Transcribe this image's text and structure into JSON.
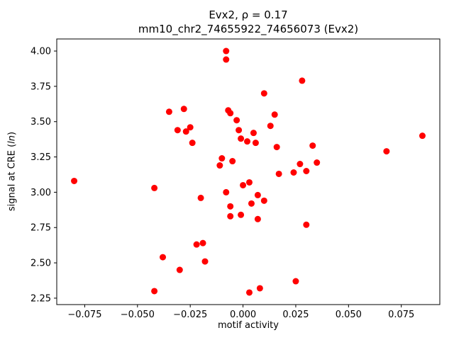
{
  "chart_data": {
    "type": "scatter",
    "title": "Evx2, ρ = 0.17",
    "subtitle": "mm10_chr2_74655922_74656073 (Evx2)",
    "xlabel": "motif activity",
    "ylabel": "signal at CRE (ln)",
    "ylabel_prefix": "signal at CRE (",
    "ylabel_math": "ln",
    "ylabel_suffix": ")",
    "marker_color": "#ff0000",
    "frame_color": "#000000",
    "background": "#ffffff",
    "legend": "none",
    "grid": false,
    "xlim": [
      -0.08825,
      0.09325
    ],
    "ylim": [
      2.2045,
      4.0855
    ],
    "xticks": [
      {
        "value": -0.075,
        "label": "−0.075"
      },
      {
        "value": -0.05,
        "label": "−0.050"
      },
      {
        "value": -0.025,
        "label": "−0.025"
      },
      {
        "value": 0.0,
        "label": "0.000"
      },
      {
        "value": 0.025,
        "label": "0.025"
      },
      {
        "value": 0.05,
        "label": "0.050"
      },
      {
        "value": 0.075,
        "label": "0.075"
      }
    ],
    "yticks": [
      {
        "value": 2.25,
        "label": "2.25"
      },
      {
        "value": 2.5,
        "label": "2.50"
      },
      {
        "value": 2.75,
        "label": "2.75"
      },
      {
        "value": 3.0,
        "label": "3.00"
      },
      {
        "value": 3.25,
        "label": "3.25"
      },
      {
        "value": 3.5,
        "label": "3.50"
      },
      {
        "value": 3.75,
        "label": "3.75"
      },
      {
        "value": 4.0,
        "label": "4.00"
      }
    ],
    "points": [
      [
        -0.08,
        3.08
      ],
      [
        -0.042,
        3.03
      ],
      [
        -0.042,
        2.3
      ],
      [
        -0.038,
        2.54
      ],
      [
        -0.035,
        3.57
      ],
      [
        -0.031,
        3.44
      ],
      [
        -0.03,
        2.45
      ],
      [
        -0.028,
        3.59
      ],
      [
        -0.027,
        3.43
      ],
      [
        -0.025,
        3.46
      ],
      [
        -0.024,
        3.35
      ],
      [
        -0.022,
        2.63
      ],
      [
        -0.02,
        2.96
      ],
      [
        -0.019,
        2.64
      ],
      [
        -0.018,
        2.51
      ],
      [
        -0.011,
        3.19
      ],
      [
        -0.01,
        3.24
      ],
      [
        -0.008,
        4.0
      ],
      [
        -0.008,
        3.94
      ],
      [
        -0.008,
        3.0
      ],
      [
        -0.007,
        3.58
      ],
      [
        -0.006,
        3.56
      ],
      [
        -0.006,
        2.9
      ],
      [
        -0.006,
        2.83
      ],
      [
        -0.005,
        3.22
      ],
      [
        -0.003,
        3.51
      ],
      [
        -0.002,
        3.44
      ],
      [
        -0.001,
        3.38
      ],
      [
        -0.001,
        2.84
      ],
      [
        0.0,
        3.05
      ],
      [
        0.002,
        3.36
      ],
      [
        0.003,
        3.07
      ],
      [
        0.003,
        2.29
      ],
      [
        0.004,
        2.92
      ],
      [
        0.005,
        3.42
      ],
      [
        0.006,
        3.35
      ],
      [
        0.007,
        2.98
      ],
      [
        0.007,
        2.81
      ],
      [
        0.008,
        2.32
      ],
      [
        0.01,
        3.7
      ],
      [
        0.01,
        2.94
      ],
      [
        0.013,
        3.47
      ],
      [
        0.015,
        3.55
      ],
      [
        0.016,
        3.32
      ],
      [
        0.017,
        3.13
      ],
      [
        0.024,
        3.14
      ],
      [
        0.025,
        2.37
      ],
      [
        0.027,
        3.2
      ],
      [
        0.028,
        3.79
      ],
      [
        0.03,
        3.15
      ],
      [
        0.03,
        2.77
      ],
      [
        0.033,
        3.33
      ],
      [
        0.035,
        3.21
      ],
      [
        0.068,
        3.29
      ],
      [
        0.085,
        3.4
      ]
    ]
  }
}
